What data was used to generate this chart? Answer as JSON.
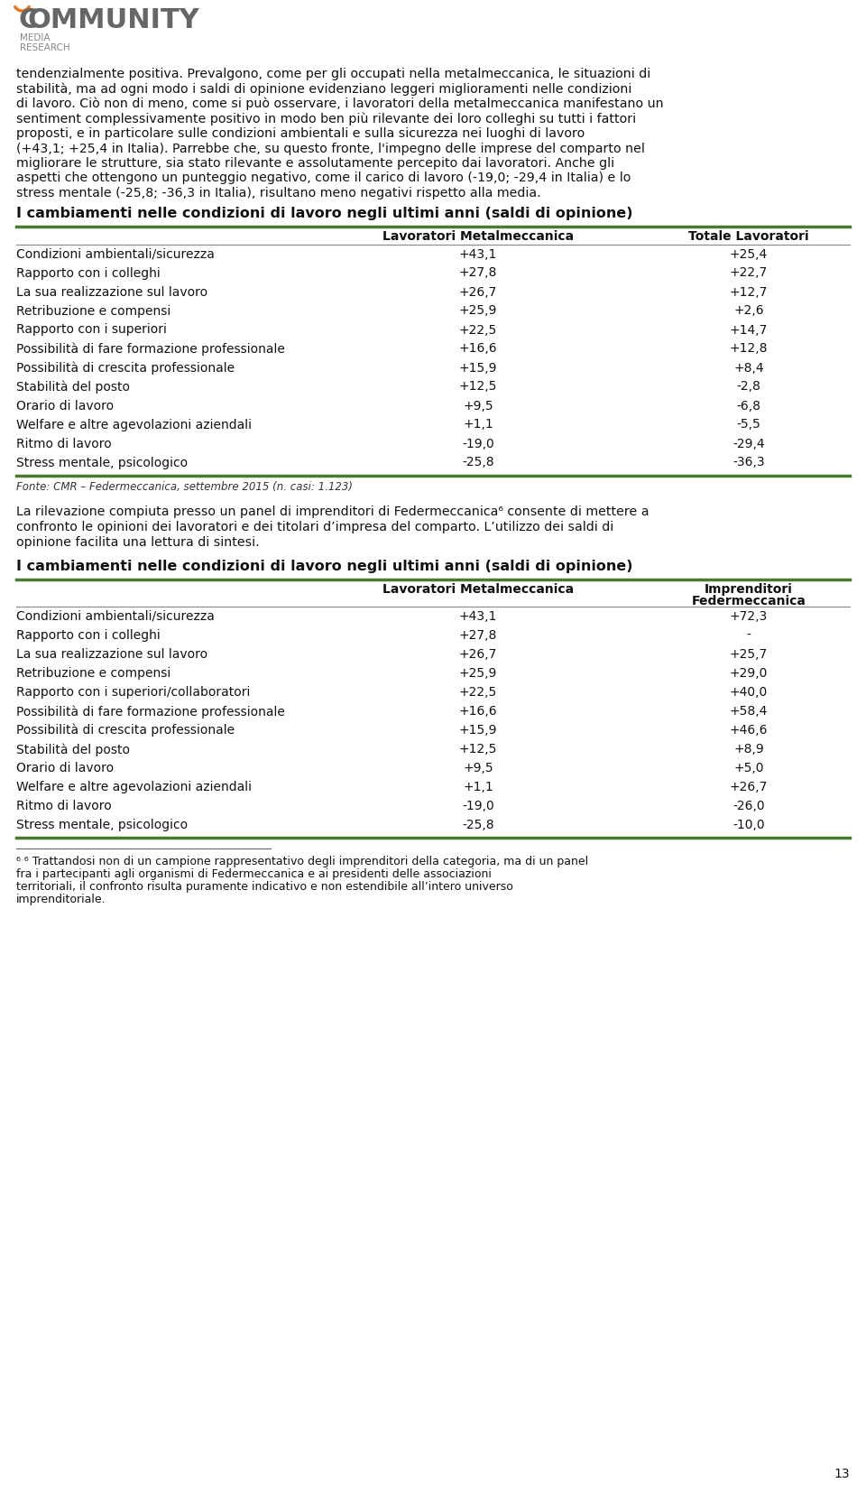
{
  "logo_text_community": "COMMUNITY",
  "logo_text_sub": "MEDIA\nRESEARCH",
  "intro_text": "tendenzialmente positiva. Prevalgono, come per gli occupati nella metalmeccanica, le situazioni di stabilità, ma ad ogni modo i saldi di opinione evidenziano leggeri miglioramenti nelle condizioni di lavoro. Ciò non di meno, come si può osservare, i lavoratori della metalmeccanica manifestano un sentiment complessivamente positivo in modo ben più rilevante dei loro colleghi su tutti i fattori proposti, e in particolare sulle condizioni ambientali e sulla sicurezza nei luoghi di lavoro (+43,1; +25,4 in Italia). Parrebbe che, su questo fronte, l'impegno delle imprese del comparto nel migliorare le strutture, sia stato rilevante e assolutamente percepito dai lavoratori. Anche gli aspetti che ottengono un punteggio negativo, come il carico di lavoro (-19,0; -29,4 in Italia) e lo stress mentale (-25,8; -36,3 in Italia), risultano meno negativi rispetto alla media.",
  "table1_title": "I cambiamenti nelle condizioni di lavoro negli ultimi anni (saldi di opinione)",
  "table1_col1": "Lavoratori Metalmeccanica",
  "table1_col2": "Totale Lavoratori",
  "table1_rows": [
    [
      "Condizioni ambientali/sicurezza",
      "+43,1",
      "+25,4"
    ],
    [
      "Rapporto con i colleghi",
      "+27,8",
      "+22,7"
    ],
    [
      "La sua realizzazione sul lavoro",
      "+26,7",
      "+12,7"
    ],
    [
      "Retribuzione e compensi",
      "+25,9",
      "+2,6"
    ],
    [
      "Rapporto con i superiori",
      "+22,5",
      "+14,7"
    ],
    [
      "Possibilità di fare formazione professionale",
      "+16,6",
      "+12,8"
    ],
    [
      "Possibilità di crescita professionale",
      "+15,9",
      "+8,4"
    ],
    [
      "Stabilità del posto",
      "+12,5",
      "-2,8"
    ],
    [
      "Orario di lavoro",
      "+9,5",
      "-6,8"
    ],
    [
      "Welfare e altre agevolazioni aziendali",
      "+1,1",
      "-5,5"
    ],
    [
      "Ritmo di lavoro",
      "-19,0",
      "-29,4"
    ],
    [
      "Stress mentale, psicologico",
      "-25,8",
      "-36,3"
    ]
  ],
  "table1_fonte": "Fonte: CMR – Federmeccanica, settembre 2015 (n. casi: 1.123)",
  "middle_text": "La rilevazione compiuta presso un panel di imprenditori di Federmeccanica⁶ consente di mettere a confronto le opinioni dei lavoratori e dei titolari d’impresa del comparto. L’utilizzo dei saldi di opinione facilita una lettura di sintesi.",
  "table2_title": "I cambiamenti nelle condizioni di lavoro negli ultimi anni (saldi di opinione)",
  "table2_col1": "Lavoratori Metalmeccanica",
  "table2_col2": "Imprenditori\nFedermeccanica",
  "table2_rows": [
    [
      "Condizioni ambientali/sicurezza",
      "+43,1",
      "+72,3"
    ],
    [
      "Rapporto con i colleghi",
      "+27,8",
      "-"
    ],
    [
      "La sua realizzazione sul lavoro",
      "+26,7",
      "+25,7"
    ],
    [
      "Retribuzione e compensi",
      "+25,9",
      "+29,0"
    ],
    [
      "Rapporto con i superiori/collaboratori",
      "+22,5",
      "+40,0"
    ],
    [
      "Possibilità di fare formazione professionale",
      "+16,6",
      "+58,4"
    ],
    [
      "Possibilità di crescita professionale",
      "+15,9",
      "+46,6"
    ],
    [
      "Stabilità del posto",
      "+12,5",
      "+8,9"
    ],
    [
      "Orario di lavoro",
      "+9,5",
      "+5,0"
    ],
    [
      "Welfare e altre agevolazioni aziendali",
      "+1,1",
      "+26,7"
    ],
    [
      "Ritmo di lavoro",
      "-19,0",
      "-26,0"
    ],
    [
      "Stress mentale, psicologico",
      "-25,8",
      "-10,0"
    ]
  ],
  "footnote_line": "",
  "footnote_text": "⁶ Trattandosi non di un campione rappresentativo degli imprenditori della categoria, ma di un panel fra i partecipanti agli organismi di Federmeccanica e ai presidenti delle associazioni territoriali, il confronto risulta puramente indicativo e non estendibile all’intero universo imprenditoriale.",
  "page_number": "13",
  "green_color": "#4a7c2f",
  "dark_green": "#2d5a1b",
  "text_color": "#000000",
  "bg_color": "#ffffff",
  "orange_color": "#e87722"
}
